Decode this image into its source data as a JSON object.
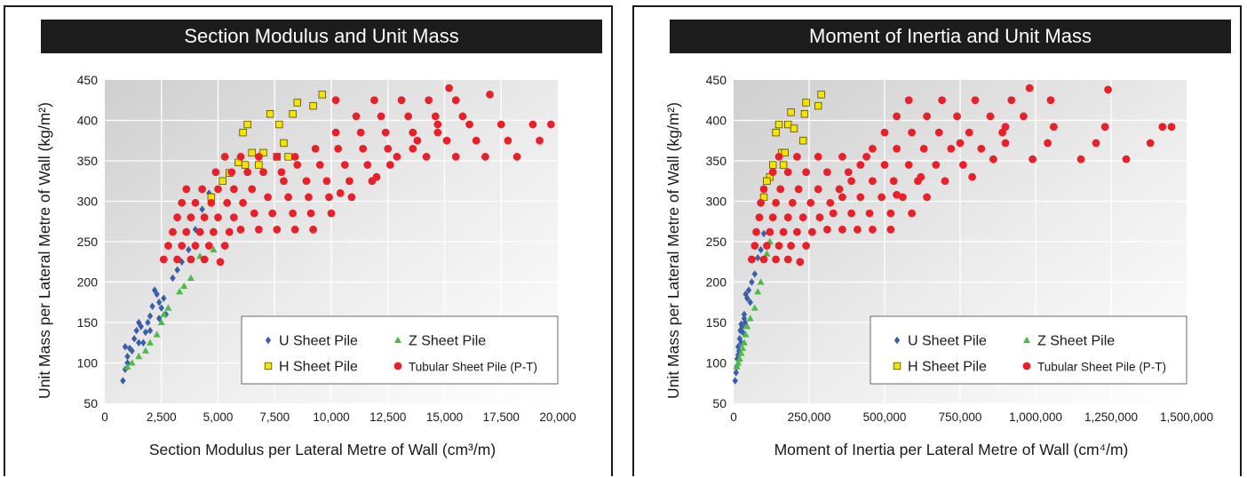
{
  "chart_data": [
    {
      "type": "scatter",
      "title": "Section Modulus and Unit Mass",
      "xlabel": "Section Modulus per Lateral Metre of Wall (cm³/m)",
      "ylabel": "Unit Mass per Lateral Metre of Wall (kg/m²)",
      "xlim": [
        0,
        20000
      ],
      "ylim": [
        50,
        450
      ],
      "xticks": [
        0,
        2500,
        5000,
        7500,
        10000,
        12500,
        15000,
        17500,
        20000
      ],
      "xtick_labels": [
        "0",
        "2,500",
        "5,000",
        "7,500",
        "10,000",
        "12,500",
        "15,000",
        "17,500",
        "20,000"
      ],
      "yticks": [
        50,
        100,
        150,
        200,
        250,
        300,
        350,
        400,
        450
      ],
      "ytick_labels": [
        "50",
        "100",
        "150",
        "200",
        "250",
        "300",
        "350",
        "400",
        "450"
      ],
      "grid": true,
      "legend_position": "bottom-right",
      "series": [
        {
          "name": "U Sheet Pile",
          "marker": "diamond",
          "color": "#3a5fa8",
          "x": [
            800,
            900,
            1000,
            1100,
            1300,
            1400,
            1500,
            1600,
            1700,
            1800,
            1900,
            2000,
            2100,
            2200,
            2300,
            2400,
            2500,
            2600,
            2700,
            3000,
            3200,
            3400,
            3700,
            4000,
            4300,
            4600,
            900,
            1200,
            1500,
            2000,
            2400,
            1000
          ],
          "y": [
            78,
            92,
            108,
            118,
            130,
            140,
            150,
            145,
            125,
            138,
            150,
            158,
            170,
            190,
            185,
            175,
            168,
            180,
            160,
            205,
            215,
            225,
            240,
            265,
            290,
            310,
            120,
            115,
            125,
            140,
            155,
            100
          ]
        },
        {
          "name": "Z Sheet Pile",
          "marker": "triangle",
          "color": "#4cbb47",
          "x": [
            1200,
            1500,
            1800,
            2000,
            2300,
            2500,
            2600,
            2800,
            3300,
            3500,
            3800,
            4200,
            4800,
            1000
          ],
          "y": [
            100,
            108,
            115,
            125,
            135,
            150,
            160,
            168,
            188,
            195,
            205,
            232,
            240,
            95
          ]
        },
        {
          "name": "H Sheet Pile",
          "marker": "square",
          "color": "#f2e600",
          "x": [
            4700,
            5200,
            5500,
            5900,
            6100,
            6300,
            6500,
            6800,
            7000,
            7300,
            7700,
            7900,
            8100,
            8500,
            8300,
            9200,
            9600,
            7600,
            6200
          ],
          "y": [
            305,
            325,
            335,
            348,
            385,
            395,
            360,
            345,
            360,
            408,
            395,
            372,
            355,
            422,
            408,
            418,
            432,
            355,
            345
          ]
        },
        {
          "name": "Tubular Sheet Pile (P-T)",
          "marker": "circle",
          "color": "#e8202a",
          "x": [
            2600,
            3200,
            3800,
            4400,
            5100,
            2800,
            3400,
            4000,
            4600,
            5300,
            3000,
            3600,
            4200,
            4800,
            5500,
            3200,
            3800,
            4400,
            5000,
            5700,
            3400,
            4000,
            4700,
            5400,
            6100,
            3600,
            4300,
            5000,
            5700,
            6500,
            4900,
            5600,
            6300,
            7000,
            7800,
            5300,
            6000,
            6800,
            7600,
            8400,
            6000,
            6800,
            7600,
            8400,
            9200,
            6600,
            7400,
            8300,
            9100,
            10000,
            7200,
            8100,
            9000,
            9900,
            10900,
            7900,
            8900,
            9800,
            10800,
            11800,
            8500,
            9500,
            10600,
            11600,
            12600,
            9300,
            10300,
            11400,
            12500,
            13600,
            10200,
            11300,
            12400,
            13600,
            14700,
            11100,
            12200,
            13400,
            14600,
            15800,
            10200,
            11900,
            13100,
            14300,
            15500,
            17000,
            12900,
            14200,
            15500,
            16800,
            18200,
            13800,
            15100,
            16400,
            17800,
            19200,
            14700,
            16100,
            17500,
            18900,
            19700,
            15200,
            10400,
            12000
          ],
          "y": [
            228,
            228,
            228,
            228,
            225,
            245,
            245,
            245,
            245,
            245,
            262,
            262,
            262,
            262,
            262,
            280,
            280,
            280,
            280,
            280,
            298,
            298,
            298,
            298,
            298,
            315,
            315,
            315,
            315,
            315,
            336,
            336,
            336,
            336,
            336,
            355,
            355,
            355,
            355,
            355,
            265,
            265,
            265,
            265,
            265,
            285,
            285,
            285,
            285,
            285,
            305,
            305,
            305,
            305,
            305,
            325,
            325,
            325,
            325,
            325,
            345,
            345,
            345,
            345,
            345,
            365,
            365,
            365,
            365,
            365,
            385,
            385,
            385,
            385,
            385,
            405,
            405,
            405,
            405,
            405,
            425,
            425,
            425,
            425,
            425,
            432,
            355,
            355,
            355,
            355,
            355,
            375,
            375,
            375,
            375,
            375,
            395,
            395,
            395,
            395,
            395,
            440,
            310,
            330
          ]
        }
      ]
    },
    {
      "type": "scatter",
      "title": "Moment of Inertia and Unit Mass",
      "xlabel": "Moment of Inertia per Lateral Metre of Wall (cm⁴/m)",
      "ylabel": "Unit Mass per Lateral Metre of Wall (kg/m²)",
      "xlim": [
        0,
        1500000
      ],
      "ylim": [
        50,
        450
      ],
      "xticks": [
        0,
        250000,
        500000,
        750000,
        1000000,
        1250000,
        1500000
      ],
      "xtick_labels": [
        "0",
        "250,000",
        "500,000",
        "750,000",
        "1,000,000",
        "1,250,000",
        "1,500,000"
      ],
      "yticks": [
        50,
        100,
        150,
        200,
        250,
        300,
        350,
        400,
        450
      ],
      "ytick_labels": [
        "50",
        "100",
        "150",
        "200",
        "250",
        "300",
        "350",
        "400",
        "450"
      ],
      "grid": true,
      "legend_position": "bottom-right",
      "series": [
        {
          "name": "U Sheet Pile",
          "marker": "diamond",
          "color": "#3a5fa8",
          "x": [
            5000,
            8000,
            10000,
            12000,
            15000,
            18000,
            20000,
            22000,
            25000,
            28000,
            30000,
            35000,
            38000,
            40000,
            45000,
            50000,
            55000,
            60000,
            70000,
            80000,
            90000,
            100000,
            15000,
            25000,
            35000
          ],
          "y": [
            78,
            88,
            95,
            105,
            120,
            115,
            130,
            140,
            148,
            145,
            138,
            160,
            150,
            185,
            180,
            190,
            175,
            200,
            210,
            230,
            240,
            260,
            110,
            125,
            155
          ]
        },
        {
          "name": "Z Sheet Pile",
          "marker": "triangle",
          "color": "#4cbb47",
          "x": [
            15000,
            20000,
            25000,
            30000,
            35000,
            40000,
            45000,
            55000,
            70000,
            80000,
            90000,
            110000,
            120000,
            10000
          ],
          "y": [
            100,
            105,
            112,
            118,
            125,
            135,
            145,
            155,
            168,
            188,
            200,
            235,
            250,
            95
          ]
        },
        {
          "name": "H Sheet Pile",
          "marker": "square",
          "color": "#f2e600",
          "x": [
            100000,
            120000,
            140000,
            150000,
            160000,
            165000,
            170000,
            180000,
            190000,
            200000,
            230000,
            235000,
            240000,
            280000,
            290000,
            110000,
            130000
          ],
          "y": [
            305,
            330,
            385,
            395,
            360,
            345,
            360,
            395,
            410,
            390,
            375,
            408,
            422,
            418,
            432,
            325,
            345
          ]
        },
        {
          "name": "Tubular Sheet Pile (P-T)",
          "marker": "circle",
          "color": "#e8202a",
          "x": [
            60000,
            100000,
            140000,
            180000,
            220000,
            70000,
            110000,
            150000,
            190000,
            240000,
            75000,
            120000,
            165000,
            210000,
            260000,
            85000,
            130000,
            180000,
            230000,
            285000,
            90000,
            140000,
            195000,
            255000,
            320000,
            100000,
            155000,
            215000,
            280000,
            350000,
            130000,
            180000,
            240000,
            310000,
            380000,
            150000,
            210000,
            280000,
            360000,
            440000,
            310000,
            360000,
            410000,
            460000,
            520000,
            330000,
            390000,
            450000,
            520000,
            590000,
            360000,
            420000,
            490000,
            560000,
            640000,
            390000,
            460000,
            530000,
            610000,
            700000,
            420000,
            500000,
            580000,
            670000,
            760000,
            460000,
            540000,
            630000,
            720000,
            820000,
            500000,
            590000,
            680000,
            780000,
            890000,
            540000,
            640000,
            740000,
            850000,
            960000,
            580000,
            690000,
            800000,
            920000,
            1050000,
            1240000,
            790000,
            860000,
            990000,
            1150000,
            1300000,
            750000,
            900000,
            1040000,
            1200000,
            1380000,
            900000,
            1060000,
            1230000,
            1420000,
            1450000,
            980000,
            540000,
            620000
          ],
          "y": [
            228,
            228,
            228,
            228,
            225,
            245,
            245,
            245,
            245,
            245,
            262,
            262,
            262,
            262,
            262,
            280,
            280,
            280,
            280,
            280,
            298,
            298,
            298,
            298,
            298,
            315,
            315,
            315,
            315,
            315,
            336,
            336,
            336,
            336,
            336,
            355,
            355,
            355,
            355,
            355,
            265,
            265,
            265,
            265,
            265,
            285,
            285,
            285,
            285,
            285,
            305,
            305,
            305,
            305,
            305,
            325,
            325,
            325,
            325,
            325,
            345,
            345,
            345,
            345,
            345,
            365,
            365,
            365,
            365,
            365,
            385,
            385,
            385,
            385,
            385,
            405,
            405,
            405,
            405,
            405,
            425,
            425,
            425,
            425,
            425,
            438,
            330,
            352,
            352,
            352,
            352,
            372,
            372,
            372,
            372,
            372,
            392,
            392,
            392,
            392,
            392,
            440,
            308,
            330
          ]
        }
      ]
    }
  ]
}
